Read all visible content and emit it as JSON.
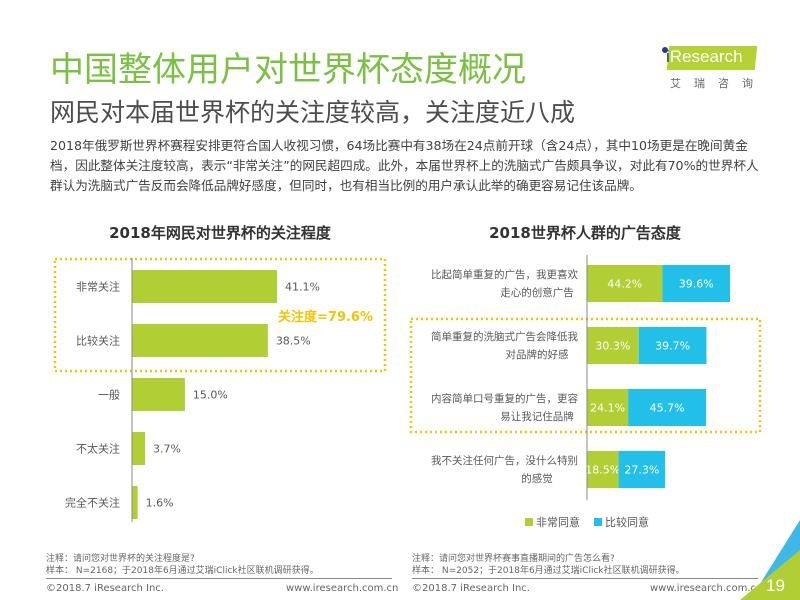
{
  "header": {
    "title": "中国整体用户对世界杯态度概况",
    "subtitle": "网民对本届世界杯的关注度较高，关注度近八成",
    "logo_text": "Research",
    "logo_i": "i",
    "logo_cn": "艾瑞咨询"
  },
  "description": "2018年俄罗斯世界杯赛程安排更符合国人收视习惯，64场比赛中有38场在24点前开球（含24点），其中10场更是在晚间黄金档，因此整体关注度较高，表示“非常关注”的网民超四成。此外，本届世界杯上的洗脑式广告颇具争议，对此有70%的世界杯人群认为洗脑式广告反而会降低品牌好感度，但同时，也有相当比例的用户承认此举的确更容易记住该品牌。",
  "colors": {
    "green": "#b1cf34",
    "blue": "#22bfe8",
    "highlight": "#f5c400",
    "title_green": "#7ac143"
  },
  "chart_data": [
    {
      "type": "bar",
      "orientation": "horizontal",
      "title": "2018年网民对世界杯的关注程度",
      "categories": [
        "非常关注",
        "比较关注",
        "一般",
        "不太关注",
        "完全不关注"
      ],
      "values": [
        41.1,
        38.5,
        15.0,
        3.7,
        1.6
      ],
      "value_labels": [
        "41.1%",
        "38.5%",
        "15.0%",
        "3.7%",
        "1.6%"
      ],
      "unit": "%",
      "annotation": "关注度=79.6%",
      "highlighted_categories": [
        "非常关注",
        "比较关注"
      ],
      "xlim": [
        0,
        50
      ],
      "grid": false
    },
    {
      "type": "bar",
      "orientation": "horizontal",
      "stacked": true,
      "title": "2018世界杯人群的广告态度",
      "categories": [
        [
          "比起简单重复的广告，我更喜欢",
          "走心的创意广告"
        ],
        [
          "简单重复的洗脑式广告会降低我",
          "对品牌的好感"
        ],
        [
          "内容简单口号重复的广告，更容",
          "易让我记住品牌"
        ],
        [
          "我不关注任何广告，没什么特别",
          "的感觉"
        ]
      ],
      "series": [
        {
          "name": "非常同意",
          "values": [
            44.2,
            30.3,
            24.1,
            18.5
          ],
          "labels": [
            "44.2%",
            "30.3%",
            "24.1%",
            "18.5%"
          ]
        },
        {
          "name": "比较同意",
          "values": [
            39.6,
            39.7,
            45.7,
            27.3
          ],
          "labels": [
            "39.6%",
            "39.7%",
            "45.7%",
            "27.3%"
          ]
        }
      ],
      "highlighted_categories": [
        1,
        2
      ],
      "legend": "bottom",
      "unit": "%",
      "xlim": [
        0,
        100
      ],
      "grid": false
    }
  ],
  "notes": {
    "left_note": "注释：请问您对世界杯的关注程度是?",
    "left_sample": "样本： N=2168；于2018年6月通过艾瑞iClick社区联机调研获得。",
    "right_note": "注释：请问您对世界杯赛事直播期间的广告怎么看?",
    "right_sample": "样本： N=2052；于2018年6月通过艾瑞iClick社区联机调研获得。"
  },
  "footer": {
    "copyright_left": "©2018.7 iResearch Inc.",
    "url_left": "www.iresearch.com.cn",
    "copyright_right": "©2018.7 iResearch Inc.",
    "url_right": "www.iresearch.com.cn",
    "page_number": "19"
  }
}
